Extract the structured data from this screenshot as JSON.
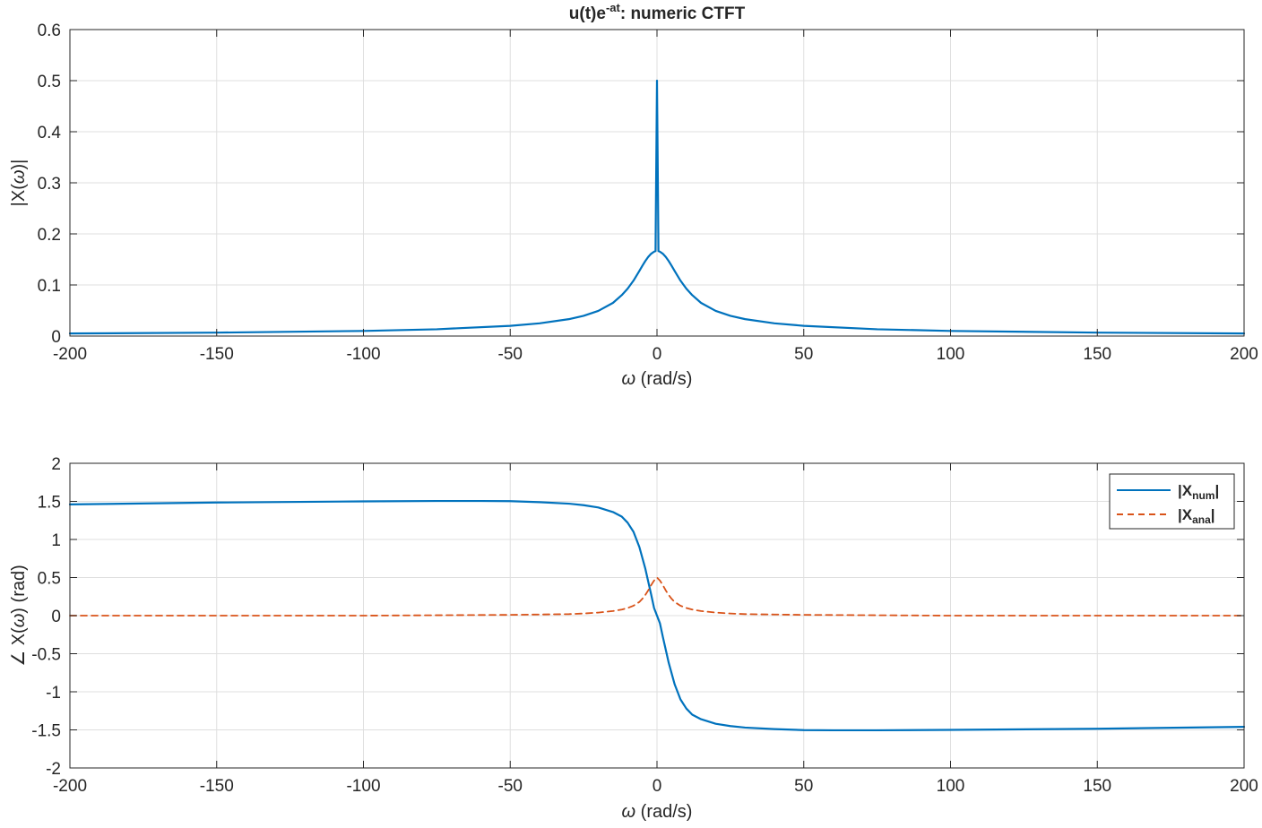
{
  "colors": {
    "series_num": "#0072BD",
    "series_ana": "#D95319",
    "grid": "#dfdfdf",
    "axes": "#262626",
    "background": "#ffffff"
  },
  "chart_data": [
    {
      "type": "line",
      "title": "u(t)e",
      "title_sup": "-at",
      "title_rest": ":  numeric  CTFT",
      "xlabel_symbol": "ω",
      "xlabel_unit": "  (rad/s)",
      "ylabel_pre": "|X(",
      "ylabel_symbol": "ω",
      "ylabel_post": ")|",
      "xlim": [
        -200,
        200
      ],
      "ylim": [
        0,
        0.6
      ],
      "x_ticks": [
        -200,
        -150,
        -100,
        -50,
        0,
        50,
        100,
        150,
        200
      ],
      "x_tick_labels": [
        "-200",
        "-150",
        "-100",
        "-50",
        "0",
        "50",
        "100",
        "150",
        "200"
      ],
      "y_ticks": [
        0,
        0.1,
        0.2,
        0.3,
        0.4,
        0.5,
        0.6
      ],
      "y_tick_labels": [
        "0",
        "0.1",
        "0.2",
        "0.3",
        "0.4",
        "0.5",
        "0.6"
      ],
      "grid": true,
      "series": [
        {
          "color": "#0072BD",
          "dash": "solid",
          "x": [
            -200,
            -150,
            -100,
            -75,
            -50,
            -40,
            -30,
            -25,
            -20,
            -15,
            -12,
            -10,
            -8,
            -6,
            -5,
            -4,
            -3,
            -2,
            -1,
            -0.5,
            0,
            0.5,
            1,
            2,
            3,
            4,
            5,
            6,
            8,
            10,
            12,
            15,
            20,
            25,
            30,
            40,
            50,
            75,
            100,
            150,
            200
          ],
          "y": [
            0.005,
            0.0067,
            0.01,
            0.0133,
            0.02,
            0.0249,
            0.0331,
            0.0396,
            0.0492,
            0.0649,
            0.0801,
            0.0928,
            0.1085,
            0.1275,
            0.1374,
            0.1467,
            0.1548,
            0.1611,
            0.1651,
            0.1662,
            0.5,
            0.1662,
            0.1651,
            0.1611,
            0.1548,
            0.1467,
            0.1374,
            0.1275,
            0.1085,
            0.0928,
            0.0801,
            0.0649,
            0.0492,
            0.0396,
            0.0331,
            0.0249,
            0.02,
            0.0133,
            0.01,
            0.0067,
            0.005
          ]
        }
      ]
    },
    {
      "type": "line",
      "xlabel_symbol": "ω",
      "xlabel_unit": "  (rad/s)",
      "ylabel_pre": "∠ X(",
      "ylabel_symbol": "ω",
      "ylabel_post": ")  (rad)",
      "xlim": [
        -200,
        200
      ],
      "ylim": [
        -2,
        2
      ],
      "x_ticks": [
        -200,
        -150,
        -100,
        -50,
        0,
        50,
        100,
        150,
        200
      ],
      "x_tick_labels": [
        "-200",
        "-150",
        "-100",
        "-50",
        "0",
        "50",
        "100",
        "150",
        "200"
      ],
      "y_ticks": [
        -2,
        -1.5,
        -1,
        -0.5,
        0,
        0.5,
        1,
        1.5,
        2
      ],
      "y_tick_labels": [
        "-2",
        "-1.5",
        "-1",
        "-0.5",
        "0",
        "0.5",
        "1",
        "1.5",
        "2"
      ],
      "grid": true,
      "legend": {
        "position": "top-right",
        "entries": [
          {
            "pre": "|X",
            "sub": "num",
            "post": "|",
            "color": "#0072BD",
            "dash": "solid"
          },
          {
            "pre": "|X",
            "sub": "ana",
            "post": "|",
            "color": "#D95319",
            "dash": "dashed"
          }
        ]
      },
      "series": [
        {
          "color": "#0072BD",
          "dash": "solid",
          "x": [
            -200,
            -150,
            -100,
            -75,
            -60,
            -50,
            -40,
            -30,
            -25,
            -20,
            -15,
            -12,
            -10,
            -8,
            -6,
            -4,
            -3,
            -2,
            -1,
            0,
            1,
            2,
            3,
            4,
            6,
            8,
            10,
            12,
            15,
            20,
            25,
            30,
            40,
            50,
            60,
            75,
            100,
            150,
            200
          ],
          "y": [
            1.46,
            1.485,
            1.5,
            1.505,
            1.505,
            1.503,
            1.49,
            1.47,
            1.45,
            1.42,
            1.36,
            1.3,
            1.22,
            1.1,
            0.9,
            0.62,
            0.45,
            0.28,
            0.1,
            0.0,
            -0.1,
            -0.28,
            -0.45,
            -0.62,
            -0.9,
            -1.1,
            -1.22,
            -1.3,
            -1.36,
            -1.42,
            -1.45,
            -1.47,
            -1.49,
            -1.503,
            -1.505,
            -1.505,
            -1.5,
            -1.485,
            -1.46
          ]
        },
        {
          "color": "#D95319",
          "dash": "dashed",
          "x": [
            -200,
            -150,
            -100,
            -75,
            -50,
            -40,
            -30,
            -25,
            -20,
            -15,
            -12,
            -10,
            -8,
            -6,
            -5,
            -4,
            -3,
            -2,
            -1,
            0,
            1,
            2,
            3,
            4,
            5,
            6,
            8,
            10,
            12,
            15,
            20,
            25,
            30,
            40,
            50,
            75,
            100,
            150,
            200
          ],
          "y": [
            0.0,
            0.0,
            0.0,
            0.005,
            0.01,
            0.015,
            0.02,
            0.028,
            0.04,
            0.06,
            0.08,
            0.1,
            0.13,
            0.18,
            0.22,
            0.27,
            0.33,
            0.4,
            0.46,
            0.5,
            0.46,
            0.4,
            0.33,
            0.27,
            0.22,
            0.18,
            0.13,
            0.1,
            0.08,
            0.06,
            0.04,
            0.028,
            0.02,
            0.015,
            0.01,
            0.005,
            0.0,
            0.0,
            0.0
          ]
        }
      ]
    }
  ]
}
